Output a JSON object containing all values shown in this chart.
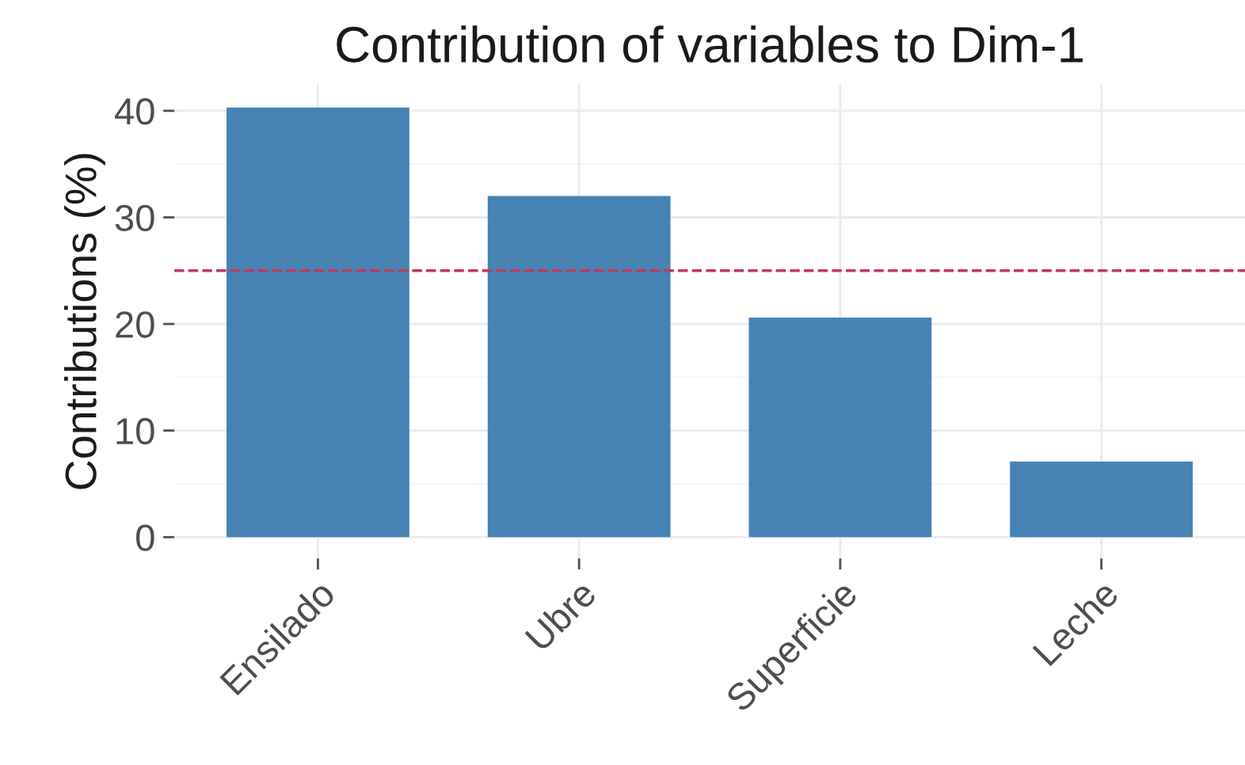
{
  "chart_data": {
    "type": "bar",
    "title": "Contribution of variables to Dim-1",
    "ylabel": "Contributions (%)",
    "categories": [
      "Ensilado",
      "Ubre",
      "Superficie",
      "Leche"
    ],
    "values": [
      40.3,
      32.0,
      20.6,
      7.1
    ],
    "color": "#4682b4",
    "ylim": [
      -2,
      42.5
    ],
    "yticks": [
      0,
      10,
      20,
      30,
      40
    ],
    "grid": true,
    "ref_lines": [
      {
        "axis": "y",
        "value": 25,
        "color": "#c0395a",
        "line_style": "dashed"
      }
    ]
  }
}
